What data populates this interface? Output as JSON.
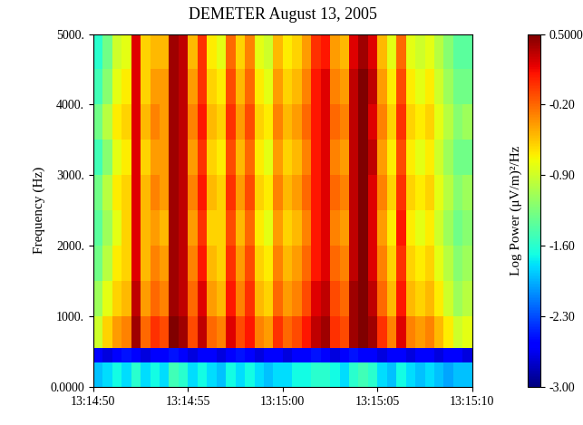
{
  "chart_data": {
    "type": "heatmap",
    "title": "DEMETER August 13, 2005",
    "y_label": "Frequency (Hz)",
    "xlim": [
      0,
      20
    ],
    "xticks": [
      {
        "value": 0,
        "label": "13:14:50"
      },
      {
        "value": 5,
        "label": "13:14:55"
      },
      {
        "value": 10,
        "label": "13:15:00"
      },
      {
        "value": 15,
        "label": "13:15:05"
      },
      {
        "value": 20,
        "label": "13:15:10"
      }
    ],
    "ylim": [
      0,
      5000
    ],
    "yticks": [
      {
        "value": 0,
        "label": "0.0000"
      },
      {
        "value": 1000,
        "label": "1000."
      },
      {
        "value": 2000,
        "label": "2000."
      },
      {
        "value": 3000,
        "label": "3000."
      },
      {
        "value": 4000,
        "label": "4000."
      },
      {
        "value": 5000,
        "label": "5000."
      }
    ],
    "x_edges": [
      0,
      0.5,
      1,
      1.5,
      2,
      2.5,
      3,
      3.5,
      4,
      4.5,
      5,
      5.5,
      6,
      6.5,
      7,
      7.5,
      8,
      8.5,
      9,
      9.5,
      10,
      10.5,
      11,
      11.5,
      12,
      12.5,
      13,
      13.5,
      14,
      14.5,
      15,
      15.5,
      16,
      16.5,
      17,
      17.5,
      18,
      18.5,
      19,
      19.5,
      20
    ],
    "y_edges": [
      0,
      350,
      550,
      1000,
      1500,
      2000,
      2500,
      3000,
      3500,
      4000,
      4500,
      5000
    ],
    "cells": [
      [
        -1.9,
        -1.8,
        -1.7,
        -1.8,
        -1.6,
        -1.8,
        -1.7,
        -1.8,
        -1.5,
        -1.6,
        -1.8,
        -1.7,
        -1.8,
        -1.9,
        -1.7,
        -1.8,
        -1.7,
        -1.8,
        -1.9,
        -1.8,
        -1.8,
        -1.7,
        -1.7,
        -1.6,
        -1.6,
        -1.7,
        -1.8,
        -1.6,
        -1.5,
        -1.6,
        -1.8,
        -1.9,
        -1.7,
        -1.8,
        -1.9,
        -1.8,
        -1.9,
        -2.0,
        -1.9,
        -1.9
      ],
      [
        -2.6,
        -2.7,
        -2.6,
        -2.5,
        -2.6,
        -2.7,
        -2.6,
        -2.6,
        -2.5,
        -2.6,
        -2.7,
        -2.6,
        -2.6,
        -2.7,
        -2.6,
        -2.5,
        -2.6,
        -2.7,
        -2.6,
        -2.6,
        -2.7,
        -2.6,
        -2.6,
        -2.5,
        -2.6,
        -2.7,
        -2.6,
        -2.5,
        -2.6,
        -2.6,
        -2.7,
        -2.6,
        -2.6,
        -2.7,
        -2.6,
        -2.6,
        -2.7,
        -2.6,
        -2.6,
        -2.7
      ],
      [
        -0.9,
        -0.6,
        -0.4,
        -0.3,
        0.4,
        -0.2,
        0.0,
        -0.1,
        0.5,
        0.4,
        -0.1,
        0.3,
        -0.2,
        -0.3,
        0.2,
        -0.1,
        0.1,
        -0.3,
        -0.4,
        0.0,
        -0.2,
        -0.1,
        0.1,
        0.3,
        0.4,
        0.0,
        -0.1,
        0.4,
        0.5,
        0.4,
        0.0,
        -0.3,
        0.2,
        -0.3,
        -0.4,
        -0.3,
        -0.5,
        -0.7,
        -0.9,
        -0.8
      ],
      [
        -1.1,
        -0.8,
        -0.6,
        -0.5,
        0.3,
        -0.4,
        -0.2,
        -0.3,
        0.4,
        0.3,
        -0.2,
        0.2,
        -0.4,
        -0.5,
        0.1,
        -0.3,
        0.0,
        -0.5,
        -0.6,
        -0.2,
        -0.4,
        -0.3,
        -0.1,
        0.2,
        0.3,
        -0.1,
        -0.2,
        0.4,
        0.5,
        0.3,
        -0.2,
        -0.5,
        0.1,
        -0.5,
        -0.6,
        -0.5,
        -0.7,
        -0.9,
        -1.1,
        -1.0
      ],
      [
        -1.3,
        -1.0,
        -0.7,
        -0.6,
        0.2,
        -0.5,
        -0.3,
        -0.4,
        0.4,
        0.3,
        -0.3,
        0.1,
        -0.5,
        -0.6,
        0.0,
        -0.4,
        -0.1,
        -0.6,
        -0.7,
        -0.3,
        -0.5,
        -0.4,
        -0.2,
        0.1,
        0.2,
        -0.2,
        -0.3,
        0.3,
        0.5,
        0.2,
        -0.3,
        -0.6,
        0.0,
        -0.6,
        -0.7,
        -0.6,
        -0.8,
        -1.0,
        -1.2,
        -1.1
      ],
      [
        -1.4,
        -1.1,
        -0.8,
        -0.6,
        0.2,
        -0.5,
        -0.4,
        -0.5,
        0.4,
        0.3,
        -0.4,
        0.0,
        -0.6,
        -0.6,
        -0.1,
        -0.5,
        -0.2,
        -0.7,
        -0.8,
        -0.4,
        -0.6,
        -0.5,
        -0.3,
        0.1,
        0.2,
        -0.3,
        -0.4,
        0.3,
        0.5,
        0.2,
        -0.4,
        -0.7,
        0.1,
        -0.7,
        -0.8,
        -0.7,
        -0.9,
        -1.1,
        -1.3,
        -1.2
      ],
      [
        -1.3,
        -1.0,
        -0.7,
        -0.6,
        0.2,
        -0.5,
        -0.3,
        -0.4,
        0.4,
        0.3,
        -0.3,
        0.1,
        -0.5,
        -0.6,
        0.0,
        -0.4,
        -0.1,
        -0.6,
        -0.7,
        -0.3,
        -0.5,
        -0.4,
        -0.2,
        0.1,
        0.2,
        -0.2,
        -0.3,
        0.3,
        0.5,
        0.2,
        -0.3,
        -0.6,
        0.0,
        -0.6,
        -0.7,
        -0.6,
        -0.8,
        -1.0,
        -1.2,
        -1.1
      ],
      [
        -1.5,
        -1.2,
        -0.8,
        -0.7,
        0.2,
        -0.6,
        -0.4,
        -0.4,
        0.4,
        0.3,
        -0.4,
        0.0,
        -0.6,
        -0.7,
        -0.1,
        -0.5,
        -0.2,
        -0.7,
        -0.8,
        -0.4,
        -0.6,
        -0.5,
        -0.3,
        0.1,
        0.2,
        -0.3,
        -0.4,
        0.3,
        0.5,
        0.3,
        -0.4,
        -0.7,
        -0.1,
        -0.7,
        -0.8,
        -0.7,
        -0.9,
        -1.1,
        -1.3,
        -1.3
      ],
      [
        -1.3,
        -1.0,
        -0.7,
        -0.6,
        0.2,
        -0.5,
        -0.3,
        -0.4,
        0.4,
        0.3,
        -0.3,
        0.1,
        -0.5,
        -0.6,
        0.0,
        -0.4,
        -0.1,
        -0.6,
        -0.7,
        -0.3,
        -0.5,
        -0.4,
        -0.2,
        0.1,
        0.2,
        -0.2,
        -0.3,
        0.3,
        0.5,
        0.2,
        -0.3,
        -0.6,
        0.0,
        -0.6,
        -0.7,
        -0.6,
        -0.8,
        -1.0,
        -1.2,
        -1.1
      ],
      [
        -1.5,
        -1.2,
        -0.8,
        -0.7,
        0.2,
        -0.6,
        -0.4,
        -0.4,
        0.4,
        0.3,
        -0.4,
        0.0,
        -0.6,
        -0.7,
        -0.1,
        -0.5,
        -0.2,
        -0.7,
        -0.8,
        -0.4,
        -0.6,
        -0.5,
        -0.3,
        0.1,
        0.2,
        -0.3,
        -0.4,
        0.3,
        0.5,
        0.3,
        -0.4,
        -0.7,
        -0.1,
        -0.7,
        -0.8,
        -0.7,
        -0.9,
        -1.1,
        -1.3,
        -1.3
      ],
      [
        -1.6,
        -1.3,
        -0.9,
        -0.8,
        0.2,
        -0.6,
        -0.5,
        -0.5,
        0.4,
        0.3,
        -0.5,
        0.0,
        -0.7,
        -0.8,
        -0.2,
        -0.6,
        -0.3,
        -0.8,
        -0.9,
        -0.5,
        -0.7,
        -0.6,
        -0.4,
        0.0,
        0.1,
        -0.4,
        -0.5,
        0.2,
        0.4,
        0.2,
        -0.5,
        -0.8,
        -0.2,
        -0.8,
        -0.9,
        -0.8,
        -1.0,
        -1.2,
        -1.4,
        -1.4
      ]
    ],
    "colorbar": {
      "label": "Log Power (μV/m)²/Hz",
      "range": [
        -3.0,
        0.5
      ],
      "ticks": [
        {
          "value": 0.5,
          "label": "0.5000"
        },
        {
          "value": -0.2,
          "label": "-0.20"
        },
        {
          "value": -0.9,
          "label": "-0.90"
        },
        {
          "value": -1.6,
          "label": "-1.60"
        },
        {
          "value": -2.3,
          "label": "-2.30"
        },
        {
          "value": -3.0,
          "label": "-3.00"
        }
      ]
    }
  }
}
